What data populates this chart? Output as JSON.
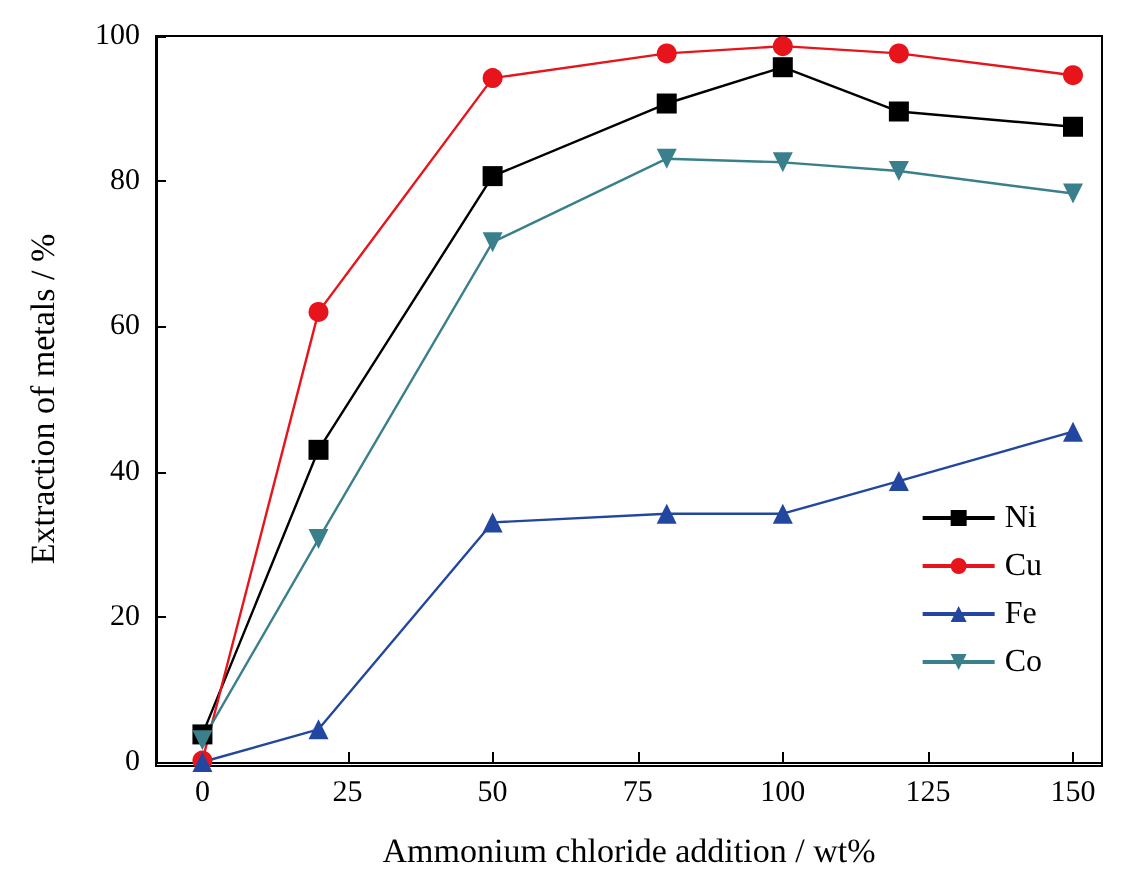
{
  "chart_data": {
    "type": "line",
    "xlabel": "Ammonium chloride addition / wt%",
    "ylabel": "Extraction of metals / %",
    "x": [
      0,
      20,
      50,
      80,
      100,
      120,
      150
    ],
    "series": [
      {
        "name": "Ni",
        "color": "#000000",
        "marker": "square",
        "values": [
          3.8,
          43,
          80.7,
          90.7,
          95.7,
          89.6,
          87.5
        ]
      },
      {
        "name": "Cu",
        "color": "#e8141c",
        "marker": "circle",
        "values": [
          0.2,
          62,
          94.2,
          97.6,
          98.6,
          97.6,
          94.6
        ]
      },
      {
        "name": "Fe",
        "color": "#2347a0",
        "marker": "triangle",
        "values": [
          0,
          4.5,
          33,
          34.2,
          34.2,
          38.7,
          45.5
        ]
      },
      {
        "name": "Co",
        "color": "#3a7f8c",
        "marker": "triangle-down",
        "values": [
          3,
          30.7,
          71.6,
          83.1,
          82.6,
          81.4,
          78.3
        ]
      }
    ],
    "xlim": [
      -8,
      155
    ],
    "xticks": [
      0,
      25,
      50,
      75,
      100,
      125,
      150
    ],
    "ylim": [
      0,
      100
    ],
    "yticks": [
      0,
      20,
      40,
      60,
      80,
      100
    ],
    "grid": false,
    "legend": "bottom right",
    "line_style": "solid"
  }
}
